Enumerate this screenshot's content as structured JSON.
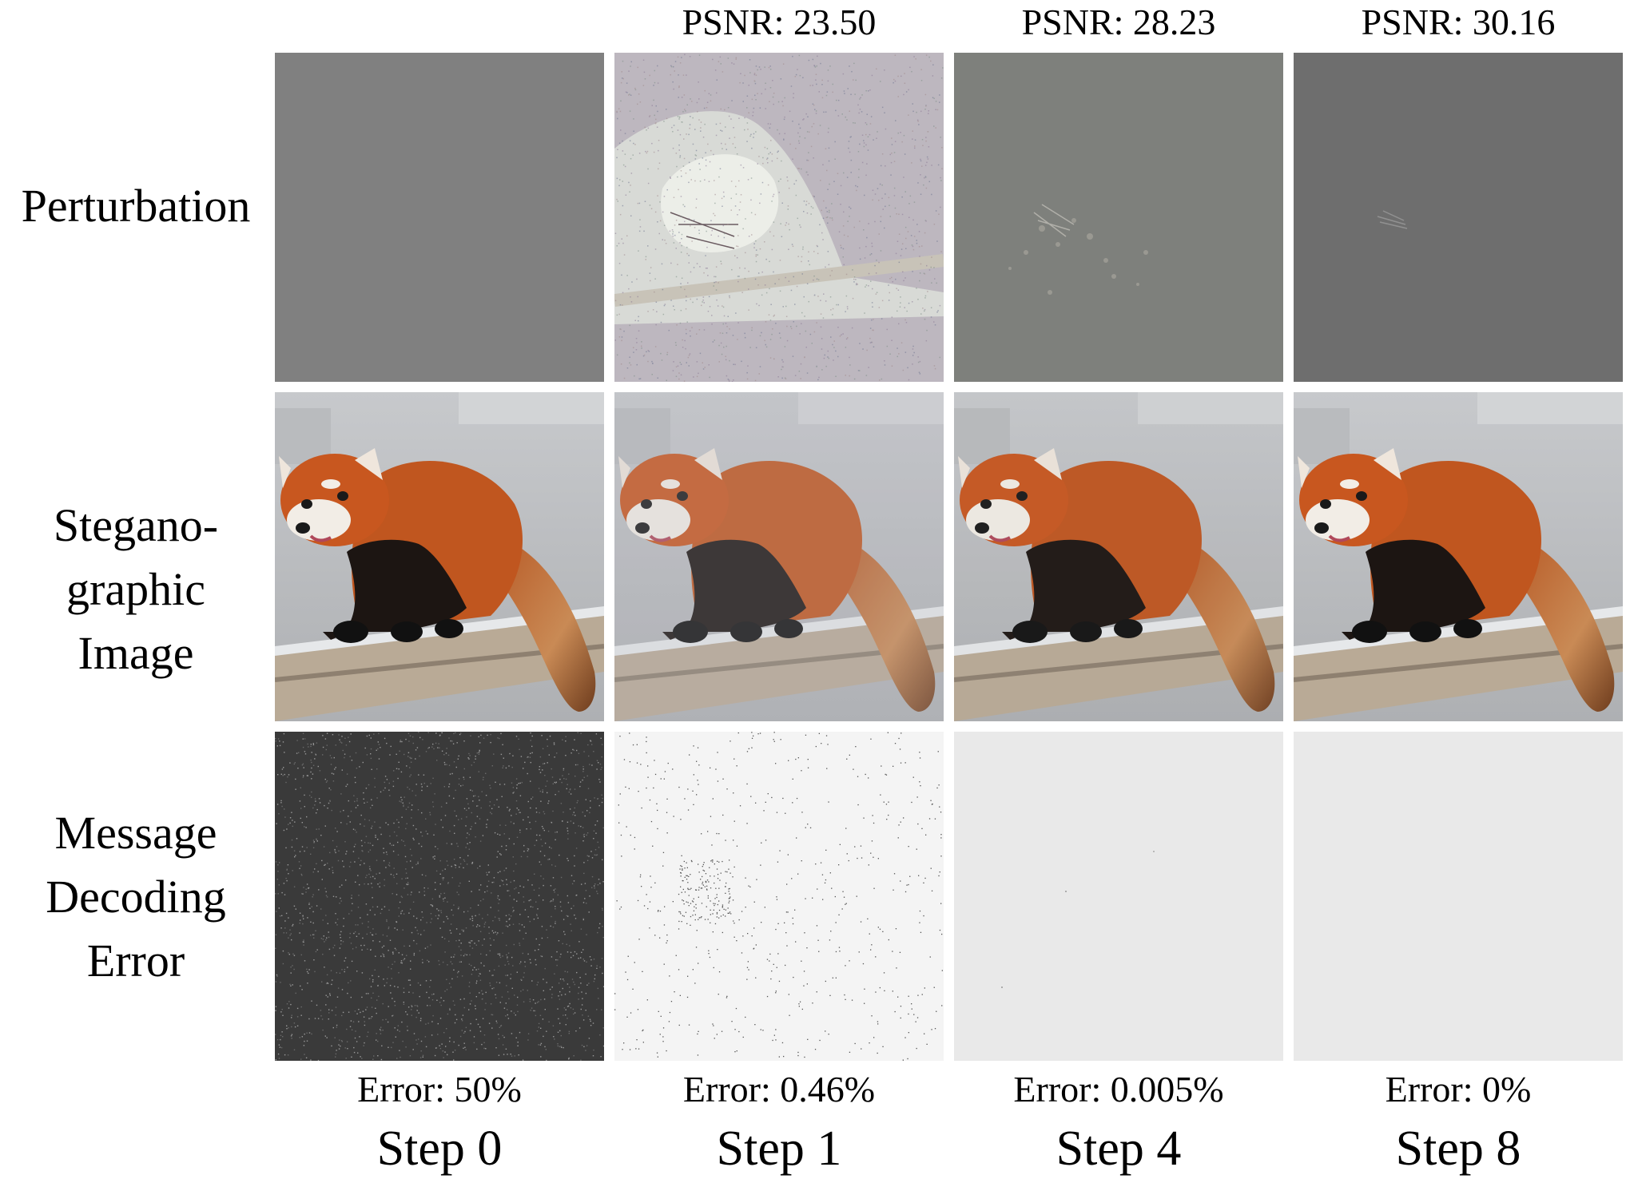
{
  "columns": [
    {
      "psnr": "",
      "error": "Error: 50%",
      "step": "Step 0"
    },
    {
      "psnr": "PSNR: 23.50",
      "error": "Error: 0.46%",
      "step": "Step 1"
    },
    {
      "psnr": "PSNR: 28.23",
      "error": "Error: 0.005%",
      "step": "Step 4"
    },
    {
      "psnr": "PSNR: 30.16",
      "error": "Error: 0%",
      "step": "Step 8"
    }
  ],
  "rows": {
    "perturbation": {
      "label": "Perturbation"
    },
    "stego": {
      "label_lines": [
        "Stegano-",
        "graphic",
        "Image"
      ]
    },
    "error": {
      "label_lines": [
        "Message",
        "Decoding",
        "Error"
      ]
    }
  },
  "colors": {
    "flat_gray": "#808080",
    "dark_error": "#3a3a3a",
    "light_error": "#e9e9e9",
    "panda_orange": "#c8571f"
  }
}
